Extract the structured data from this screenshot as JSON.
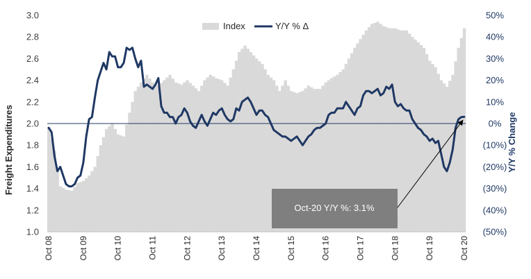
{
  "colors": {
    "bar": "#d9d9d9",
    "line": "#1f3864",
    "zero_line": "#1f3864",
    "annotation_box": "#7f7f7f",
    "annotation_text": "#ffffff",
    "arrow": "#000000"
  },
  "chart_data": {
    "type": "bar+line",
    "xlabel": "",
    "ylabel_left": "Freight Expenditures",
    "ylabel_right": "Y/Y % Change",
    "ylim_left": [
      1.0,
      3.0
    ],
    "ylim_right": [
      -50,
      50
    ],
    "yticks_left": [
      "1.0",
      "1.2",
      "1.4",
      "1.6",
      "1.8",
      "2.0",
      "2.2",
      "2.4",
      "2.6",
      "2.8",
      "3.0"
    ],
    "yticks_right": [
      "(50%)",
      "(40%)",
      "(30%)",
      "(20%)",
      "(10%)",
      "0%",
      "10%",
      "20%",
      "30%",
      "40%",
      "50%"
    ],
    "x_tick_labels": [
      "Oct 08",
      "Oct 09",
      "Oct 10",
      "Oct 11",
      "Oct 12",
      "Oct 13",
      "Oct 14",
      "Oct 15",
      "Oct 16",
      "Oct 17",
      "Oct 18",
      "Oct 19",
      "Oct 20"
    ],
    "legend": {
      "position": "top-center",
      "entries": [
        "Index",
        "Y/Y % Δ"
      ]
    },
    "annotation": {
      "text": "Oct-20 Y/Y %: 3.1%",
      "target_month_index": 144,
      "target_value": 3.1
    },
    "series": [
      {
        "name": "Index",
        "kind": "bar",
        "axis": "left",
        "anchors": [
          [
            0,
            1.97
          ],
          [
            2,
            1.75
          ],
          [
            4,
            1.42
          ],
          [
            6,
            1.39
          ],
          [
            8,
            1.38
          ],
          [
            10,
            1.45
          ],
          [
            12,
            1.47
          ],
          [
            14,
            1.52
          ],
          [
            16,
            1.6
          ],
          [
            18,
            1.8
          ],
          [
            20,
            1.95
          ],
          [
            22,
            2.0
          ],
          [
            24,
            1.9
          ],
          [
            26,
            1.88
          ],
          [
            28,
            2.1
          ],
          [
            30,
            2.3
          ],
          [
            32,
            2.38
          ],
          [
            34,
            2.45
          ],
          [
            36,
            2.38
          ],
          [
            38,
            2.35
          ],
          [
            40,
            2.4
          ],
          [
            42,
            2.45
          ],
          [
            44,
            2.38
          ],
          [
            46,
            2.36
          ],
          [
            48,
            2.4
          ],
          [
            50,
            2.35
          ],
          [
            52,
            2.3
          ],
          [
            54,
            2.4
          ],
          [
            56,
            2.45
          ],
          [
            58,
            2.42
          ],
          [
            60,
            2.4
          ],
          [
            62,
            2.35
          ],
          [
            64,
            2.5
          ],
          [
            66,
            2.66
          ],
          [
            68,
            2.72
          ],
          [
            70,
            2.66
          ],
          [
            72,
            2.6
          ],
          [
            74,
            2.55
          ],
          [
            76,
            2.45
          ],
          [
            78,
            2.4
          ],
          [
            80,
            2.3
          ],
          [
            82,
            2.4
          ],
          [
            84,
            2.3
          ],
          [
            86,
            2.28
          ],
          [
            88,
            2.3
          ],
          [
            90,
            2.35
          ],
          [
            92,
            2.32
          ],
          [
            94,
            2.32
          ],
          [
            96,
            2.38
          ],
          [
            98,
            2.42
          ],
          [
            100,
            2.45
          ],
          [
            102,
            2.5
          ],
          [
            104,
            2.6
          ],
          [
            106,
            2.7
          ],
          [
            108,
            2.78
          ],
          [
            110,
            2.86
          ],
          [
            112,
            2.92
          ],
          [
            114,
            2.94
          ],
          [
            116,
            2.9
          ],
          [
            118,
            2.88
          ],
          [
            120,
            2.88
          ],
          [
            122,
            2.86
          ],
          [
            124,
            2.86
          ],
          [
            126,
            2.8
          ],
          [
            128,
            2.75
          ],
          [
            130,
            2.7
          ],
          [
            132,
            2.58
          ],
          [
            134,
            2.52
          ],
          [
            136,
            2.4
          ],
          [
            138,
            2.34
          ],
          [
            140,
            2.45
          ],
          [
            142,
            2.7
          ],
          [
            144,
            2.88
          ]
        ]
      },
      {
        "name": "Y/Y % Δ",
        "kind": "line",
        "axis": "right",
        "anchors": [
          [
            0,
            -2
          ],
          [
            1,
            -4
          ],
          [
            2,
            -15
          ],
          [
            3,
            -22
          ],
          [
            4,
            -20
          ],
          [
            5,
            -24
          ],
          [
            6,
            -28
          ],
          [
            7,
            -29
          ],
          [
            8,
            -29
          ],
          [
            9,
            -28
          ],
          [
            10,
            -25
          ],
          [
            11,
            -24
          ],
          [
            12,
            -18
          ],
          [
            13,
            -6
          ],
          [
            14,
            2
          ],
          [
            15,
            3
          ],
          [
            16,
            12
          ],
          [
            17,
            20
          ],
          [
            18,
            24
          ],
          [
            19,
            28
          ],
          [
            20,
            25
          ],
          [
            21,
            33
          ],
          [
            22,
            31
          ],
          [
            23,
            31
          ],
          [
            24,
            26
          ],
          [
            25,
            26
          ],
          [
            26,
            28
          ],
          [
            27,
            35
          ],
          [
            28,
            34
          ],
          [
            29,
            35
          ],
          [
            30,
            30
          ],
          [
            31,
            26
          ],
          [
            32,
            29
          ],
          [
            33,
            17
          ],
          [
            34,
            18
          ],
          [
            35,
            17
          ],
          [
            36,
            16
          ],
          [
            37,
            18
          ],
          [
            38,
            21
          ],
          [
            39,
            8
          ],
          [
            40,
            5
          ],
          [
            41,
            5
          ],
          [
            42,
            3
          ],
          [
            43,
            3
          ],
          [
            44,
            0
          ],
          [
            45,
            3
          ],
          [
            46,
            4
          ],
          [
            47,
            7
          ],
          [
            48,
            5
          ],
          [
            49,
            1
          ],
          [
            50,
            -1
          ],
          [
            51,
            -2
          ],
          [
            52,
            1
          ],
          [
            53,
            4
          ],
          [
            54,
            1
          ],
          [
            55,
            -1
          ],
          [
            56,
            2
          ],
          [
            57,
            5
          ],
          [
            58,
            4
          ],
          [
            59,
            6
          ],
          [
            60,
            7
          ],
          [
            61,
            4
          ],
          [
            62,
            2
          ],
          [
            63,
            1
          ],
          [
            64,
            2
          ],
          [
            65,
            7
          ],
          [
            66,
            6
          ],
          [
            67,
            10
          ],
          [
            68,
            11
          ],
          [
            69,
            12
          ],
          [
            70,
            10
          ],
          [
            71,
            7
          ],
          [
            72,
            4
          ],
          [
            73,
            6
          ],
          [
            74,
            6
          ],
          [
            75,
            4
          ],
          [
            76,
            3
          ],
          [
            77,
            0
          ],
          [
            78,
            -3
          ],
          [
            79,
            -4
          ],
          [
            80,
            -5
          ],
          [
            81,
            -6
          ],
          [
            82,
            -6
          ],
          [
            83,
            -7
          ],
          [
            84,
            -8
          ],
          [
            85,
            -7
          ],
          [
            86,
            -6
          ],
          [
            87,
            -8
          ],
          [
            88,
            -10
          ],
          [
            89,
            -8
          ],
          [
            90,
            -6
          ],
          [
            91,
            -5
          ],
          [
            92,
            -3
          ],
          [
            93,
            -2
          ],
          [
            94,
            -2
          ],
          [
            95,
            -1
          ],
          [
            96,
            0
          ],
          [
            97,
            4
          ],
          [
            98,
            5
          ],
          [
            99,
            5
          ],
          [
            100,
            7
          ],
          [
            101,
            7
          ],
          [
            102,
            7
          ],
          [
            103,
            10
          ],
          [
            104,
            8
          ],
          [
            105,
            6
          ],
          [
            106,
            4
          ],
          [
            107,
            7
          ],
          [
            108,
            8
          ],
          [
            109,
            13
          ],
          [
            110,
            15
          ],
          [
            111,
            15
          ],
          [
            112,
            14
          ],
          [
            113,
            15
          ],
          [
            114,
            16
          ],
          [
            115,
            13
          ],
          [
            116,
            14
          ],
          [
            117,
            17
          ],
          [
            118,
            16
          ],
          [
            119,
            18
          ],
          [
            120,
            10
          ],
          [
            121,
            8
          ],
          [
            122,
            9
          ],
          [
            123,
            7
          ],
          [
            124,
            6
          ],
          [
            125,
            6
          ],
          [
            126,
            2
          ],
          [
            127,
            0
          ],
          [
            128,
            -2
          ],
          [
            129,
            -3
          ],
          [
            130,
            -5
          ],
          [
            131,
            -6
          ],
          [
            132,
            -8
          ],
          [
            133,
            -7
          ],
          [
            134,
            -9
          ],
          [
            135,
            -8
          ],
          [
            136,
            -14
          ],
          [
            137,
            -20
          ],
          [
            138,
            -22
          ],
          [
            139,
            -18
          ],
          [
            140,
            -12
          ],
          [
            141,
            -2
          ],
          [
            142,
            2
          ],
          [
            143,
            3
          ],
          [
            144,
            3.1
          ]
        ]
      }
    ]
  }
}
